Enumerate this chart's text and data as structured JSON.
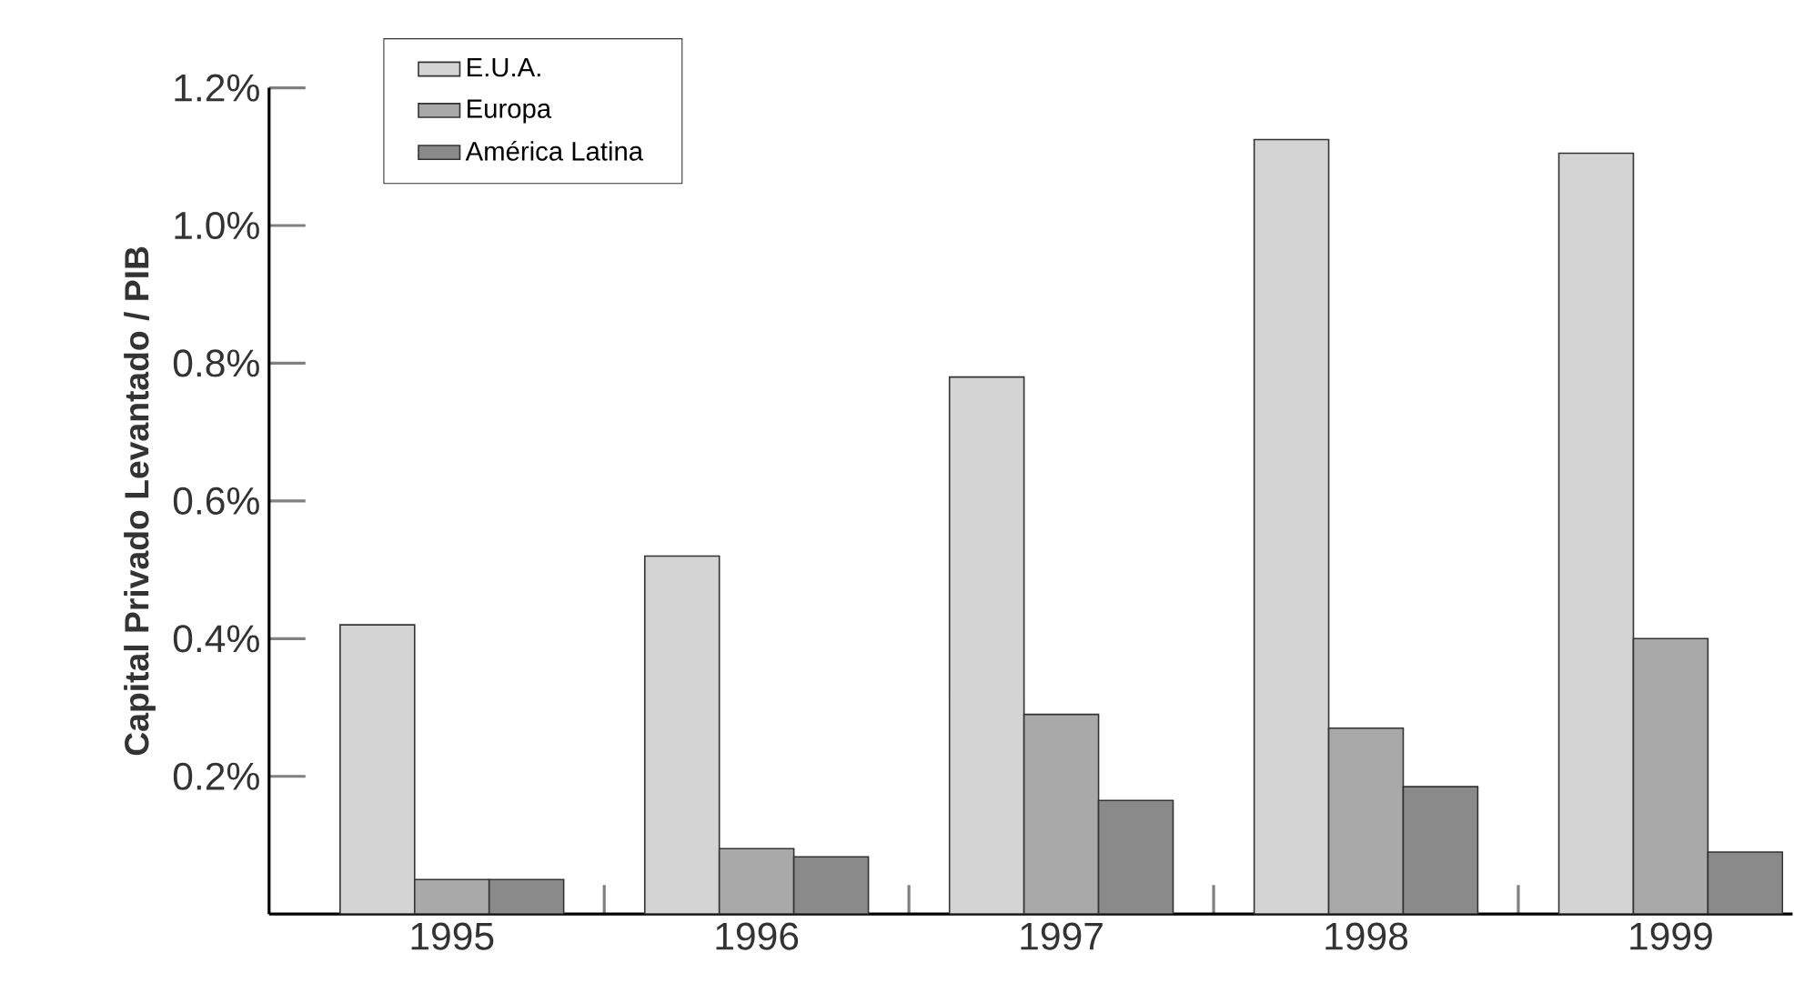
{
  "chart_data": {
    "type": "bar",
    "ylabel": "Capital Privado Levantado / PIB",
    "categories": [
      "1995",
      "1996",
      "1997",
      "1998",
      "1999"
    ],
    "series": [
      {
        "name": "E.U.A.",
        "color": "#d4d4d4",
        "values": [
          0.42,
          0.52,
          0.78,
          1.125,
          1.105
        ]
      },
      {
        "name": "Europa",
        "color": "#a9a9a9",
        "values": [
          0.05,
          0.095,
          0.29,
          0.27,
          0.4
        ]
      },
      {
        "name": "América Latina",
        "color": "#8a8a8a",
        "values": [
          0.05,
          0.083,
          0.165,
          0.185,
          0.09
        ]
      }
    ],
    "ylim": [
      0,
      1.2
    ],
    "yticks": [
      {
        "value": 0.2,
        "label": "0.2%"
      },
      {
        "value": 0.4,
        "label": "0.4%"
      },
      {
        "value": 0.6,
        "label": "0.6%"
      },
      {
        "value": 0.8,
        "label": "0.8%"
      },
      {
        "value": 1.0,
        "label": "1.0%"
      },
      {
        "value": 1.2,
        "label": "1.2%"
      }
    ],
    "grid": false,
    "legend": "top left"
  }
}
